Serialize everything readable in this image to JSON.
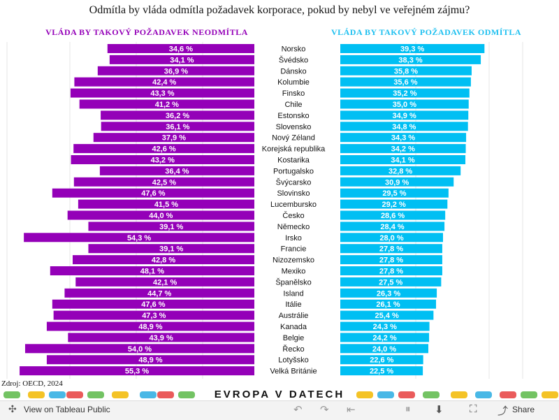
{
  "title": "Odmítla by vláda odmítla požadavek korporace, pokud by nebyl ve veřejném zájmu?",
  "source": "Zdroj: OECD, 2024",
  "brand": "EVROPA V DATECH",
  "footer": {
    "view_label": "View on Tableau Public",
    "share_label": "Share"
  },
  "colors": {
    "left": "#9400b8",
    "right": "#00bff3"
  },
  "icons": [
    "tableau-icon",
    "undo-icon",
    "redo-icon",
    "revert-icon",
    "pause-icon",
    "download-icon",
    "fullscreen-icon",
    "share-icon"
  ],
  "chart_data": {
    "type": "bar",
    "left_series_name": "VLÁDA BY TAKOVÝ POŽADAVEK NEODMÍTLA",
    "right_series_name": "VLÁDA BY TAKOVÝ POŽADAVEK ODMÍTLA",
    "categories": [
      "Norsko",
      "Švédsko",
      "Dánsko",
      "Kolumbie",
      "Finsko",
      "Chile",
      "Estonsko",
      "Slovensko",
      "Nový Zéland",
      "Korejská republika",
      "Kostarika",
      "Portugalsko",
      "Švýcarsko",
      "Slovinsko",
      "Lucembursko",
      "Česko",
      "Německo",
      "Irsko",
      "Francie",
      "Nizozemsko",
      "Mexiko",
      "Španělsko",
      "Island",
      "Itálie",
      "Austrálie",
      "Kanada",
      "Belgie",
      "Řecko",
      "Lotyšsko",
      "Velká Británie"
    ],
    "left_values": [
      34.6,
      34.1,
      36.9,
      42.4,
      43.3,
      41.2,
      36.2,
      36.1,
      37.9,
      42.6,
      43.2,
      36.4,
      42.5,
      47.6,
      41.5,
      44.0,
      39.1,
      54.3,
      39.1,
      42.8,
      48.1,
      42.1,
      44.7,
      47.6,
      47.3,
      48.9,
      43.9,
      54.0,
      48.9,
      55.3
    ],
    "right_values": [
      39.3,
      38.3,
      35.8,
      35.6,
      35.2,
      35.0,
      34.9,
      34.8,
      34.3,
      34.2,
      34.1,
      32.8,
      30.9,
      29.5,
      29.2,
      28.6,
      28.4,
      28.0,
      27.8,
      27.8,
      27.8,
      27.5,
      26.3,
      26.1,
      25.4,
      24.3,
      24.2,
      24.0,
      22.6,
      22.5
    ],
    "left_labels": [
      "34,6 %",
      "34,1 %",
      "36,9 %",
      "42,4 %",
      "43,3 %",
      "41,2 %",
      "36,2 %",
      "36,1 %",
      "37,9 %",
      "42,6 %",
      "43,2 %",
      "36,4 %",
      "42,5 %",
      "47,6 %",
      "41,5 %",
      "44,0 %",
      "39,1 %",
      "54,3 %",
      "39,1 %",
      "42,8 %",
      "48,1 %",
      "42,1 %",
      "44,7 %",
      "47,6 %",
      "47,3 %",
      "48,9 %",
      "43,9 %",
      "54,0 %",
      "48,9 %",
      "55,3 %"
    ],
    "right_labels": [
      "39,3 %",
      "38,3 %",
      "35,8 %",
      "35,6 %",
      "35,2 %",
      "35,0 %",
      "34,9 %",
      "34,8 %",
      "34,3 %",
      "34,2 %",
      "34,1 %",
      "32,8 %",
      "30,9 %",
      "29,5 %",
      "29,2 %",
      "28,6 %",
      "28,4 %",
      "28,0 %",
      "27,8 %",
      "27,8 %",
      "27,8 %",
      "27,5 %",
      "26,3 %",
      "26,1 %",
      "25,4 %",
      "24,3 %",
      "24,2 %",
      "24,0 %",
      "22,6 %",
      "22,5 %"
    ],
    "grid": true,
    "legend": "top"
  }
}
